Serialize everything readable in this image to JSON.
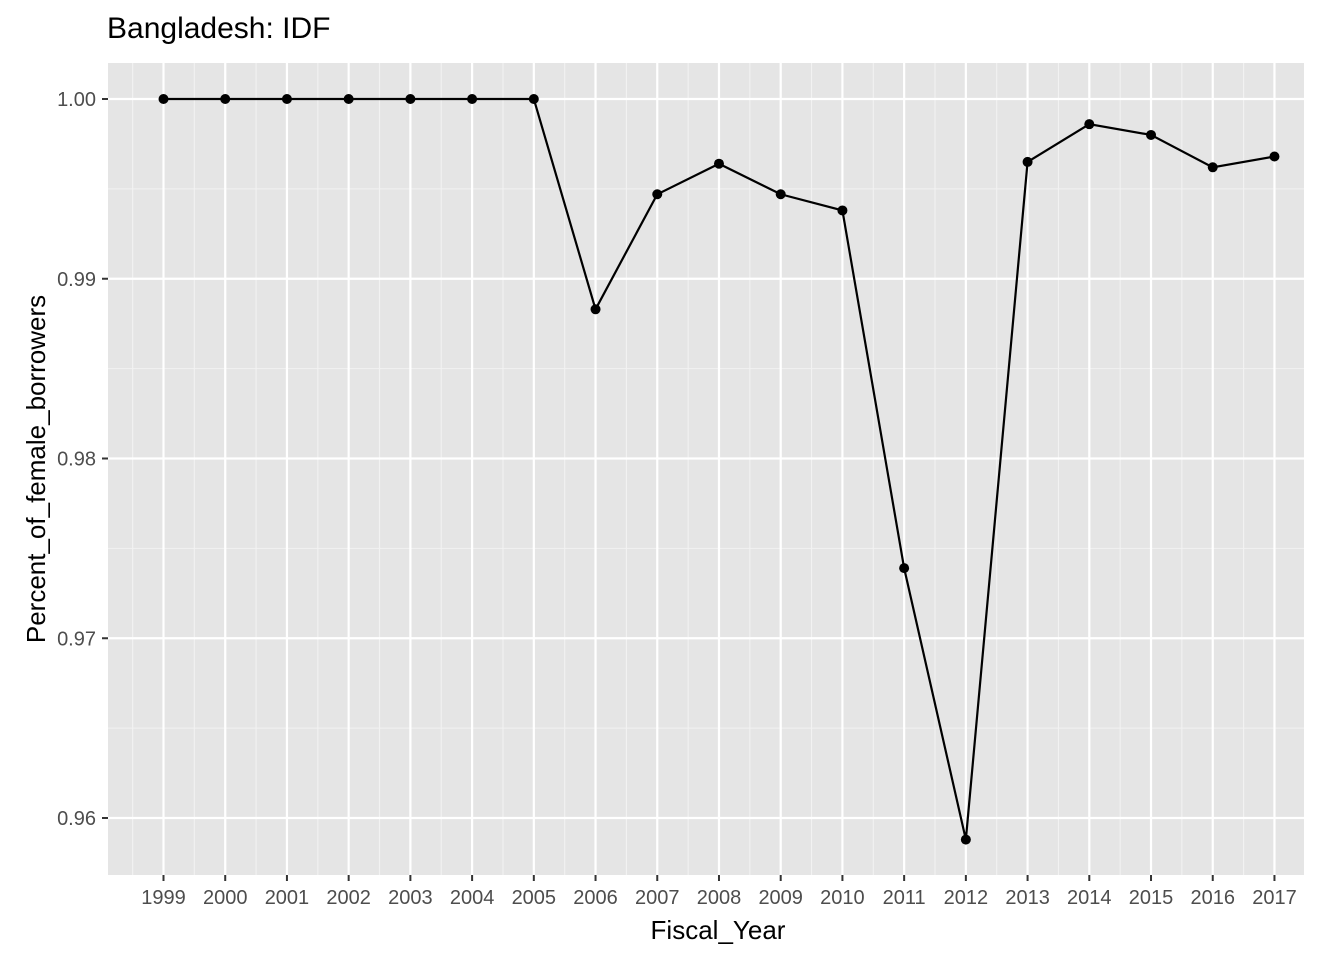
{
  "chart_data": {
    "type": "line",
    "title": "Bangladesh:  IDF",
    "xlabel": "Fiscal_Year",
    "ylabel": "Percent_of_female_borrowers",
    "x": [
      "1999",
      "2000",
      "2001",
      "2002",
      "2003",
      "2004",
      "2005",
      "2006",
      "2007",
      "2008",
      "2009",
      "2010",
      "2011",
      "2012",
      "2013",
      "2014",
      "2015",
      "2016",
      "2017"
    ],
    "values": [
      1.0,
      1.0,
      1.0,
      1.0,
      1.0,
      1.0,
      1.0,
      0.9883,
      0.9947,
      0.9964,
      0.9947,
      0.9938,
      0.9739,
      0.9588,
      0.9965,
      0.9986,
      0.998,
      0.9962,
      0.9968
    ],
    "yticks": [
      0.96,
      0.97,
      0.98,
      0.99,
      1.0
    ],
    "ytick_labels": [
      "0.96",
      "0.97",
      "0.98",
      "0.99",
      "1.00"
    ],
    "ylim": [
      0.9568,
      1.002
    ],
    "grid": true,
    "legend": "none",
    "colors": {
      "panel": "#e5e5e5",
      "grid": "#ffffff",
      "line": "#000000",
      "point": "#000000",
      "tick_text": "#4d4d4d"
    }
  }
}
